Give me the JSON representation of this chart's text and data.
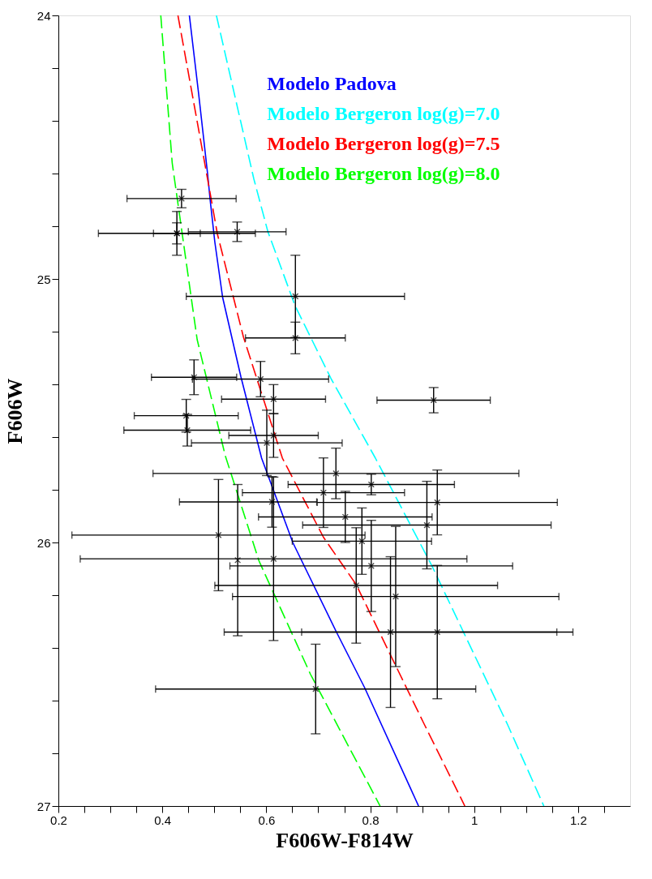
{
  "chart_data": {
    "type": "scatter",
    "xlabel": "F606W-F814W",
    "ylabel": "F606W",
    "xlim": [
      0.2,
      1.3
    ],
    "ylim": [
      27,
      24
    ],
    "xticks": [
      0.2,
      {
        "value": 0.25,
        "label": null
      },
      {
        "value": 0.3,
        "label": null
      },
      {
        "value": 0.35,
        "label": null
      },
      0.4,
      {
        "value": 0.45,
        "label": null
      },
      {
        "value": 0.5,
        "label": null
      },
      {
        "value": 0.55,
        "label": null
      },
      0.6,
      {
        "value": 0.65,
        "label": null
      },
      {
        "value": 0.7,
        "label": null
      },
      {
        "value": 0.75,
        "label": null
      },
      0.8,
      {
        "value": 0.85,
        "label": null
      },
      {
        "value": 0.9,
        "label": null
      },
      {
        "value": 0.95,
        "label": null
      },
      1,
      {
        "value": 1.05,
        "label": null
      },
      {
        "value": 1.1,
        "label": null
      },
      {
        "value": 1.15,
        "label": null
      },
      1.2,
      {
        "value": 1.25,
        "label": null
      }
    ],
    "yticks": [
      24,
      {
        "value": 24.2,
        "label": null
      },
      {
        "value": 24.4,
        "label": null
      },
      {
        "value": 24.6,
        "label": null
      },
      {
        "value": 24.8,
        "label": null
      },
      25,
      {
        "value": 25.2,
        "label": null
      },
      {
        "value": 25.4,
        "label": null
      },
      {
        "value": 25.6,
        "label": null
      },
      {
        "value": 25.8,
        "label": null
      },
      26,
      {
        "value": 26.2,
        "label": null
      },
      {
        "value": 26.4,
        "label": null
      },
      {
        "value": 26.6,
        "label": null
      },
      {
        "value": 26.8,
        "label": null
      },
      27
    ],
    "grid": false,
    "legend": "top right",
    "series": [
      {
        "name": "Modelo Padova",
        "type": "line",
        "color": "#0000ff",
        "line_style": "solid",
        "marker": "none",
        "x": [
          0.452,
          0.47,
          0.487,
          0.492,
          0.501,
          0.516,
          0.551,
          0.591,
          0.651,
          0.735,
          0.789,
          0.893
        ],
        "values": [
          24,
          24.3,
          24.6,
          24.7,
          24.86,
          25.07,
          25.37,
          25.68,
          26.0,
          26.34,
          26.55,
          27
        ]
      },
      {
        "name": "Modelo Bergeron log(g)=7.0",
        "type": "line",
        "color": "#00ffff",
        "line_style": "dashed",
        "marker": "none",
        "x": [
          0.504,
          0.576,
          0.603,
          0.655,
          0.725,
          0.81,
          0.919,
          1.064,
          1.134
        ],
        "values": [
          24,
          24.62,
          24.82,
          25.1,
          25.38,
          25.68,
          26.09,
          26.69,
          27
        ]
      },
      {
        "name": "Modelo Bergeron log(g)=7.5",
        "type": "line",
        "color": "#ff0000",
        "line_style": "dashed",
        "marker": "none",
        "x": [
          0.43,
          0.487,
          0.506,
          0.556,
          0.631,
          0.71,
          0.773,
          0.904,
          0.982
        ],
        "values": [
          24,
          24.62,
          24.83,
          25.22,
          25.68,
          25.98,
          26.16,
          26.69,
          27
        ]
      },
      {
        "name": "Modelo Bergeron log(g)=8.0",
        "type": "line",
        "color": "#00ff00",
        "line_style": "dashed",
        "marker": "none",
        "x": [
          0.397,
          0.419,
          0.424,
          0.467,
          0.521,
          0.586,
          0.685,
          0.819
        ],
        "values": [
          24,
          24.56,
          24.63,
          25.23,
          25.67,
          26.07,
          26.5,
          27
        ]
      },
      {
        "color": "#000000",
        "marker": "cross",
        "x": [
          0.437,
          0.428,
          0.428,
          0.544,
          0.656,
          0.656,
          0.461,
          0.589,
          0.614,
          0.922,
          0.446,
          0.448,
          0.614,
          0.601,
          0.734,
          0.802,
          0.71,
          0.611,
          0.929,
          0.752,
          0.909,
          0.508,
          0.784,
          0.614,
          0.545,
          0.802,
          0.773,
          0.849,
          0.839,
          0.929,
          0.695
        ],
        "values": [
          24.695,
          24.827,
          24.827,
          24.821,
          25.066,
          25.224,
          25.373,
          25.38,
          25.456,
          25.46,
          25.519,
          25.574,
          25.594,
          25.622,
          25.738,
          25.78,
          25.811,
          25.846,
          25.848,
          25.903,
          25.934,
          25.972,
          25.995,
          26.062,
          26.067,
          26.089,
          26.163,
          26.205,
          26.34,
          26.34,
          26.556
        ],
        "xerrors": [
          0.105,
          0.151,
          0.045,
          0.094,
          0.21,
          0.096,
          0.082,
          0.131,
          0.1,
          0.109,
          0.1,
          0.122,
          0.086,
          0.145,
          0.352,
          0.16,
          0.156,
          [
            0.433,
            0.697
          ],
          0.231,
          0.167,
          0.239,
          0.282,
          0.134,
          0.372,
          null,
          0.272,
          0.272,
          0.314,
          0.32,
          0.261,
          0.308
        ],
        "errors": [
          0.035,
          0.083,
          0.04,
          0.037,
          0.156,
          0.06,
          0.066,
          0.067,
          0.055,
          0.048,
          0.062,
          0.06,
          0.083,
          0.124,
          0.096,
          0.039,
          0.132,
          0.096,
          0.123,
          0.097,
          0.166,
          0.211,
          0.126,
          0.31,
          0.287,
          0.173,
          0.219,
          0.266,
          0.286,
          0.253,
          0.17
        ]
      }
    ]
  }
}
